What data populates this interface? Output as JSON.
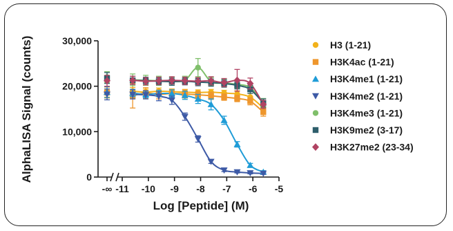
{
  "chart_data": {
    "type": "scatter",
    "xlabel": "Log [Peptide] (M)",
    "ylabel": "AlphaLISA Signal (counts)",
    "xlim": [
      -11,
      -5
    ],
    "ylim": [
      0,
      30000
    ],
    "x_break_label": "-∞",
    "x_ticks": [
      -11,
      -10,
      -9,
      -8,
      -7,
      -6,
      -5
    ],
    "x_tick_labels": [
      "-11",
      "-10",
      "-9",
      "-8",
      "-7",
      "-6",
      "-5"
    ],
    "y_ticks": [
      0,
      10000,
      20000,
      30000
    ],
    "y_tick_labels": [
      "0",
      "10,000",
      "20,000",
      "30,000"
    ],
    "grid": false,
    "legend_position": "right",
    "x": [
      -10.6,
      -10.1,
      -9.6,
      -9.1,
      -8.6,
      -8.1,
      -7.6,
      -7.1,
      -6.6,
      -6.1,
      -5.6
    ],
    "series": [
      {
        "name": "H3 (1-21)",
        "color": "#f2b21b",
        "marker": "circle",
        "zero_value": 18800,
        "values": [
          18900,
          18700,
          18900,
          18800,
          18700,
          18600,
          18700,
          18500,
          18300,
          17600,
          15200
        ],
        "errors": [
          800,
          700,
          700,
          600,
          600,
          600,
          600,
          600,
          700,
          800,
          900
        ]
      },
      {
        "name": "H3K4ac (1-21)",
        "color": "#ee962c",
        "marker": "square",
        "zero_value": 18600,
        "values": [
          17900,
          18500,
          18200,
          18400,
          18300,
          18100,
          17900,
          17600,
          17300,
          16700,
          14300
        ],
        "errors": [
          2700,
          1200,
          1000,
          900,
          900,
          800,
          800,
          700,
          700,
          800,
          900
        ]
      },
      {
        "name": "H3K4me1 (1-21)",
        "color": "#1f9cd7",
        "marker": "triangle-up",
        "zero_value": 18700,
        "values": [
          18500,
          18200,
          18400,
          18400,
          18000,
          17200,
          16000,
          12500,
          7200,
          2600,
          1100
        ],
        "errors": [
          800,
          700,
          700,
          800,
          900,
          1000,
          1200,
          900,
          600,
          400,
          300
        ]
      },
      {
        "name": "H3K4me2 (1-21)",
        "color": "#3d5aa6",
        "marker": "triangle-down",
        "zero_value": 18200,
        "values": [
          18200,
          18100,
          17800,
          16900,
          13300,
          8400,
          3400,
          1500,
          1100,
          900,
          800
        ],
        "errors": [
          1000,
          900,
          1000,
          900,
          800,
          700,
          400,
          300,
          200,
          200,
          200
        ]
      },
      {
        "name": "H3K4me3 (1-21)",
        "color": "#7fbf6a",
        "marker": "circle",
        "zero_value": 22000,
        "values": [
          21400,
          21300,
          21200,
          21100,
          21300,
          24100,
          21000,
          20700,
          20400,
          19700,
          16400
        ],
        "errors": [
          1300,
          1100,
          1000,
          900,
          900,
          2000,
          900,
          900,
          900,
          900,
          900
        ]
      },
      {
        "name": "H3K9me2 (3-17)",
        "color": "#2e5e6b",
        "marker": "square",
        "zero_value": 21800,
        "values": [
          21300,
          21200,
          21100,
          21000,
          21100,
          20900,
          20800,
          20600,
          20200,
          19300,
          16300
        ],
        "errors": [
          900,
          800,
          800,
          800,
          800,
          800,
          800,
          800,
          800,
          900,
          900
        ]
      },
      {
        "name": "H3K27me2 (23-34)",
        "color": "#b04363",
        "marker": "diamond",
        "zero_value": 21200,
        "values": [
          21300,
          21100,
          21200,
          21300,
          21200,
          21100,
          21200,
          20800,
          21300,
          20600,
          16000
        ],
        "errors": [
          900,
          800,
          800,
          800,
          800,
          800,
          900,
          900,
          2400,
          1200,
          900
        ]
      }
    ]
  }
}
